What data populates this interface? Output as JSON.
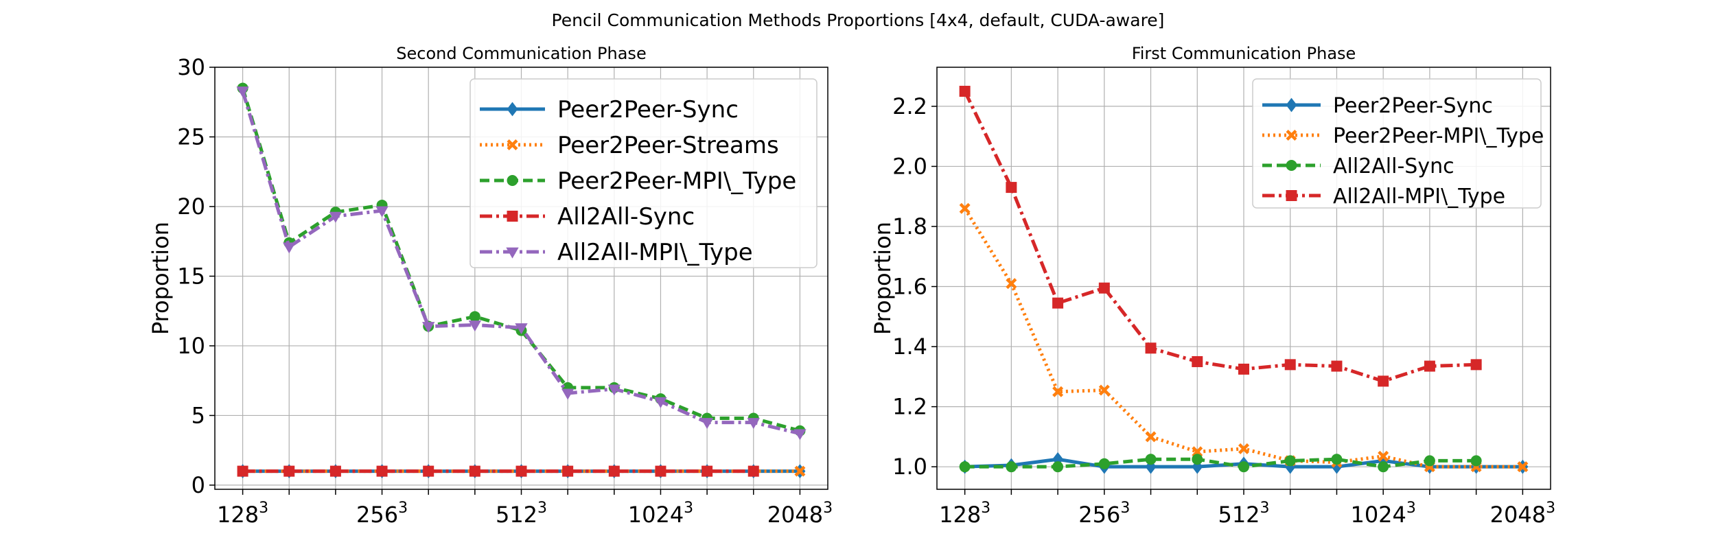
{
  "figure": {
    "title": "Pencil Communication Methods Proportions [4x4, default, CUDA-aware]"
  },
  "chart_data": [
    {
      "type": "line",
      "title": "Second Communication Phase",
      "xlabel": "",
      "ylabel": "Proportion",
      "x": [
        0,
        1,
        2,
        3,
        4,
        5,
        6,
        7,
        8,
        9,
        10,
        11,
        12
      ],
      "xlim": [
        -0.6,
        12.6
      ],
      "ylim": [
        -0.3,
        30
      ],
      "xticks": [
        {
          "x": 0,
          "base": "128",
          "exp": "3"
        },
        {
          "x": 3,
          "base": "256",
          "exp": "3"
        },
        {
          "x": 6,
          "base": "512",
          "exp": "3"
        },
        {
          "x": 9,
          "base": "1024",
          "exp": "3"
        },
        {
          "x": 12,
          "base": "2048",
          "exp": "3"
        }
      ],
      "yticks": [
        0,
        5,
        10,
        15,
        20,
        25,
        30
      ],
      "grid": true,
      "legend_position": "top-right",
      "series": [
        {
          "name": "Peer2Peer-Sync",
          "color": "#1f77b4",
          "dash": "solid",
          "marker": "diamond",
          "values": [
            1,
            1,
            1,
            1,
            1,
            1,
            1,
            1,
            1,
            1,
            1,
            1,
            1
          ]
        },
        {
          "name": "Peer2Peer-Streams",
          "color": "#ff7f0e",
          "dash": "dotted",
          "marker": "x",
          "values": [
            1,
            1,
            1,
            1,
            1,
            1,
            1,
            1,
            1,
            1,
            1,
            1,
            1
          ]
        },
        {
          "name": "Peer2Peer-MPI\\_Type",
          "color": "#2ca02c",
          "dash": "dashed",
          "marker": "circle",
          "values": [
            28.5,
            17.4,
            19.6,
            20.1,
            11.4,
            12.1,
            11.1,
            7.0,
            7.0,
            6.2,
            4.8,
            4.8,
            3.9
          ]
        },
        {
          "name": "All2All-Sync",
          "color": "#d62728",
          "dash": "dashdot",
          "marker": "square",
          "values": [
            1,
            1,
            1,
            1,
            1,
            1,
            1,
            1,
            1,
            1,
            1,
            1,
            null
          ]
        },
        {
          "name": "All2All-MPI\\_Type",
          "color": "#9467bd",
          "dash": "dashdot",
          "marker": "triangle-down",
          "values": [
            28.3,
            17.1,
            19.3,
            19.7,
            11.4,
            11.5,
            11.3,
            6.6,
            6.9,
            6.0,
            4.5,
            4.5,
            3.7
          ]
        }
      ]
    },
    {
      "type": "line",
      "title": "First Communication Phase",
      "xlabel": "",
      "ylabel": "Proportion",
      "x": [
        0,
        1,
        2,
        3,
        4,
        5,
        6,
        7,
        8,
        9,
        10,
        11,
        12
      ],
      "xlim": [
        -0.6,
        12.6
      ],
      "ylim": [
        0.925,
        2.33
      ],
      "xticks": [
        {
          "x": 0,
          "base": "128",
          "exp": "3"
        },
        {
          "x": 3,
          "base": "256",
          "exp": "3"
        },
        {
          "x": 6,
          "base": "512",
          "exp": "3"
        },
        {
          "x": 9,
          "base": "1024",
          "exp": "3"
        },
        {
          "x": 12,
          "base": "2048",
          "exp": "3"
        }
      ],
      "yticks": [
        1.0,
        1.2,
        1.4,
        1.6,
        1.8,
        2.0,
        2.2
      ],
      "grid": true,
      "legend_position": "top-right",
      "series": [
        {
          "name": "Peer2Peer-Sync",
          "color": "#1f77b4",
          "dash": "solid",
          "marker": "diamond",
          "values": [
            1.0,
            1.005,
            1.025,
            1.0,
            1.0,
            1.0,
            1.01,
            1.0,
            1.0,
            1.02,
            1.0,
            1.0,
            1.0
          ]
        },
        {
          "name": "Peer2Peer-MPI\\_Type",
          "color": "#ff7f0e",
          "dash": "dotted",
          "marker": "x",
          "values": [
            1.86,
            1.61,
            1.25,
            1.255,
            1.1,
            1.05,
            1.06,
            1.02,
            1.015,
            1.035,
            1.0,
            1.0,
            1.0
          ]
        },
        {
          "name": "All2All-Sync",
          "color": "#2ca02c",
          "dash": "dashed",
          "marker": "circle",
          "values": [
            1.0,
            1.0,
            1.0,
            1.01,
            1.025,
            1.025,
            1.0,
            1.02,
            1.025,
            1.0,
            1.02,
            1.02,
            null
          ]
        },
        {
          "name": "All2All-MPI\\_Type",
          "color": "#d62728",
          "dash": "dashdot",
          "marker": "square",
          "values": [
            2.25,
            1.93,
            1.545,
            1.595,
            1.395,
            1.35,
            1.325,
            1.34,
            1.335,
            1.285,
            1.335,
            1.34,
            null
          ]
        }
      ]
    }
  ]
}
